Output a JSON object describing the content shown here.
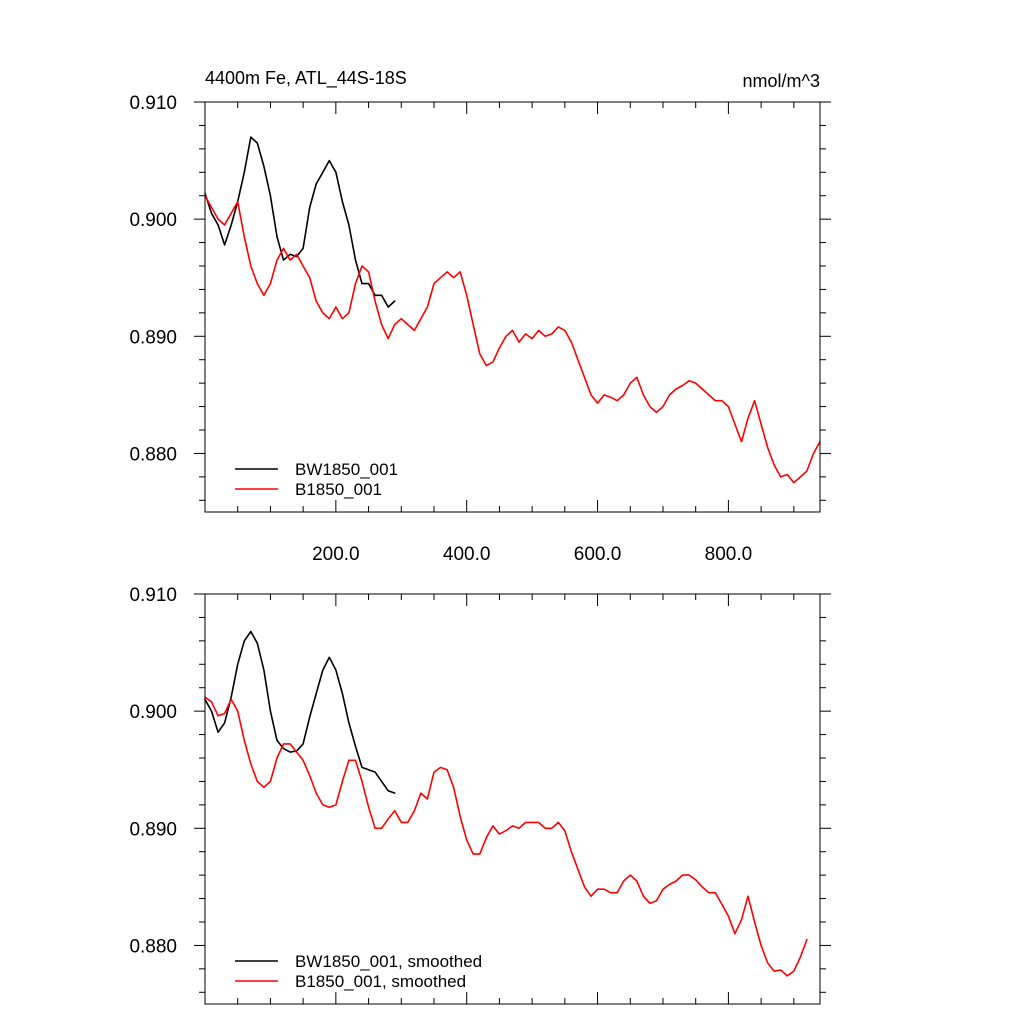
{
  "chart_data": [
    {
      "type": "line",
      "title": "4400m Fe, ATL_44S-18S",
      "units": "nmol/m^3",
      "xlim": [
        0,
        940
      ],
      "ylim": [
        0.875,
        0.91
      ],
      "xticks": [
        200,
        400,
        600,
        800
      ],
      "xtick_labels": [
        "200.0",
        "400.0",
        "600.0",
        "800.0"
      ],
      "yticks": [
        0.88,
        0.89,
        0.9,
        0.91
      ],
      "ytick_labels": [
        "0.880",
        "0.890",
        "0.900",
        "0.910"
      ],
      "grid": false,
      "legend": "bottom-left",
      "series": [
        {
          "name": "BW1850_001",
          "color": "#000000",
          "x": [
            0,
            10,
            20,
            30,
            40,
            50,
            60,
            70,
            80,
            90,
            100,
            110,
            120,
            130,
            140,
            150,
            160,
            170,
            180,
            190,
            200,
            210,
            220,
            230,
            240,
            250,
            260,
            270,
            280,
            290
          ],
          "y": [
            0.9022,
            0.9005,
            0.8995,
            0.8978,
            0.8995,
            0.9015,
            0.904,
            0.907,
            0.9065,
            0.9045,
            0.902,
            0.8985,
            0.8965,
            0.897,
            0.8968,
            0.8975,
            0.901,
            0.903,
            0.904,
            0.905,
            0.904,
            0.9015,
            0.8995,
            0.8965,
            0.8945,
            0.8945,
            0.8935,
            0.8935,
            0.8925,
            0.893
          ]
        },
        {
          "name": "B1850_001",
          "color": "#ff0000",
          "x": [
            0,
            10,
            20,
            30,
            40,
            50,
            60,
            70,
            80,
            90,
            100,
            110,
            120,
            130,
            140,
            150,
            160,
            170,
            180,
            190,
            200,
            210,
            220,
            230,
            240,
            250,
            260,
            270,
            280,
            290,
            300,
            310,
            320,
            330,
            340,
            350,
            360,
            370,
            380,
            390,
            400,
            410,
            420,
            430,
            440,
            450,
            460,
            470,
            480,
            490,
            500,
            510,
            520,
            530,
            540,
            550,
            560,
            570,
            580,
            590,
            600,
            610,
            620,
            630,
            640,
            650,
            660,
            670,
            680,
            690,
            700,
            710,
            720,
            730,
            740,
            750,
            760,
            770,
            780,
            790,
            800,
            810,
            820,
            830,
            840,
            850,
            860,
            870,
            880,
            890,
            900,
            910,
            920,
            930,
            940
          ],
          "y": [
            0.902,
            0.901,
            0.9,
            0.8995,
            0.9005,
            0.9015,
            0.8985,
            0.896,
            0.8945,
            0.8935,
            0.8945,
            0.8965,
            0.8975,
            0.8965,
            0.897,
            0.896,
            0.895,
            0.893,
            0.892,
            0.8915,
            0.8925,
            0.8915,
            0.892,
            0.8945,
            0.896,
            0.8955,
            0.893,
            0.891,
            0.8898,
            0.891,
            0.8915,
            0.891,
            0.8905,
            0.8915,
            0.8925,
            0.8945,
            0.895,
            0.8955,
            0.895,
            0.8955,
            0.8935,
            0.891,
            0.8885,
            0.8875,
            0.8878,
            0.889,
            0.89,
            0.8905,
            0.8895,
            0.8902,
            0.8898,
            0.8905,
            0.89,
            0.8902,
            0.8908,
            0.8905,
            0.8895,
            0.888,
            0.8865,
            0.885,
            0.8843,
            0.885,
            0.8848,
            0.8845,
            0.885,
            0.886,
            0.8865,
            0.885,
            0.884,
            0.8835,
            0.884,
            0.885,
            0.8855,
            0.8858,
            0.8862,
            0.886,
            0.8855,
            0.885,
            0.8845,
            0.8845,
            0.884,
            0.8825,
            0.881,
            0.883,
            0.8845,
            0.8825,
            0.8805,
            0.879,
            0.878,
            0.8782,
            0.8775,
            0.878,
            0.8785,
            0.88,
            0.881
          ]
        }
      ]
    },
    {
      "type": "line",
      "title": "",
      "units": "",
      "xlim": [
        0,
        940
      ],
      "ylim": [
        0.875,
        0.91
      ],
      "xticks": [
        200,
        400,
        600,
        800
      ],
      "xtick_labels": [],
      "yticks": [
        0.88,
        0.89,
        0.9,
        0.91
      ],
      "ytick_labels": [
        "0.880",
        "0.890",
        "0.900",
        "0.910"
      ],
      "grid": false,
      "legend": "bottom-left",
      "series": [
        {
          "name": "BW1850_001, smoothed",
          "color": "#000000",
          "x": [
            0,
            10,
            20,
            30,
            40,
            50,
            60,
            70,
            80,
            90,
            100,
            110,
            120,
            130,
            140,
            150,
            160,
            170,
            180,
            190,
            200,
            210,
            220,
            230,
            240,
            250,
            260,
            270,
            280,
            290
          ],
          "y": [
            0.901,
            0.9,
            0.8982,
            0.899,
            0.9012,
            0.904,
            0.906,
            0.9068,
            0.9058,
            0.9035,
            0.9,
            0.8975,
            0.8968,
            0.8965,
            0.8966,
            0.8972,
            0.8995,
            0.9015,
            0.9035,
            0.9046,
            0.9035,
            0.9015,
            0.899,
            0.897,
            0.8952,
            0.895,
            0.8948,
            0.894,
            0.8932,
            0.893
          ]
        },
        {
          "name": "B1850_001, smoothed",
          "color": "#ff0000",
          "x": [
            0,
            10,
            20,
            30,
            40,
            50,
            60,
            70,
            80,
            90,
            100,
            110,
            120,
            130,
            140,
            150,
            160,
            170,
            180,
            190,
            200,
            210,
            220,
            230,
            240,
            250,
            260,
            270,
            280,
            290,
            300,
            310,
            320,
            330,
            340,
            350,
            360,
            370,
            380,
            390,
            400,
            410,
            420,
            430,
            440,
            450,
            460,
            470,
            480,
            490,
            500,
            510,
            520,
            530,
            540,
            550,
            560,
            570,
            580,
            590,
            600,
            610,
            620,
            630,
            640,
            650,
            660,
            670,
            680,
            690,
            700,
            710,
            720,
            730,
            740,
            750,
            760,
            770,
            780,
            790,
            800,
            810,
            820,
            830,
            840,
            850,
            860,
            870,
            880,
            890,
            900,
            910,
            920
          ],
          "y": [
            0.9012,
            0.9008,
            0.8996,
            0.8998,
            0.901,
            0.9,
            0.8975,
            0.8955,
            0.894,
            0.8935,
            0.894,
            0.896,
            0.8972,
            0.8972,
            0.8965,
            0.8958,
            0.8945,
            0.893,
            0.892,
            0.8918,
            0.892,
            0.894,
            0.8958,
            0.8958,
            0.894,
            0.8918,
            0.89,
            0.89,
            0.8908,
            0.8915,
            0.8905,
            0.8905,
            0.8915,
            0.893,
            0.8925,
            0.8948,
            0.8952,
            0.895,
            0.8935,
            0.891,
            0.889,
            0.8878,
            0.8878,
            0.8892,
            0.8902,
            0.8895,
            0.8898,
            0.8902,
            0.89,
            0.8905,
            0.8905,
            0.8905,
            0.89,
            0.89,
            0.8905,
            0.8898,
            0.888,
            0.8865,
            0.885,
            0.8842,
            0.8848,
            0.8848,
            0.8845,
            0.8845,
            0.8855,
            0.886,
            0.8855,
            0.8842,
            0.8836,
            0.8838,
            0.8848,
            0.8852,
            0.8855,
            0.886,
            0.886,
            0.8856,
            0.885,
            0.8845,
            0.8845,
            0.8835,
            0.8825,
            0.881,
            0.8822,
            0.8842,
            0.882,
            0.88,
            0.8785,
            0.8778,
            0.8779,
            0.8774,
            0.8778,
            0.879,
            0.8805
          ]
        }
      ]
    }
  ]
}
